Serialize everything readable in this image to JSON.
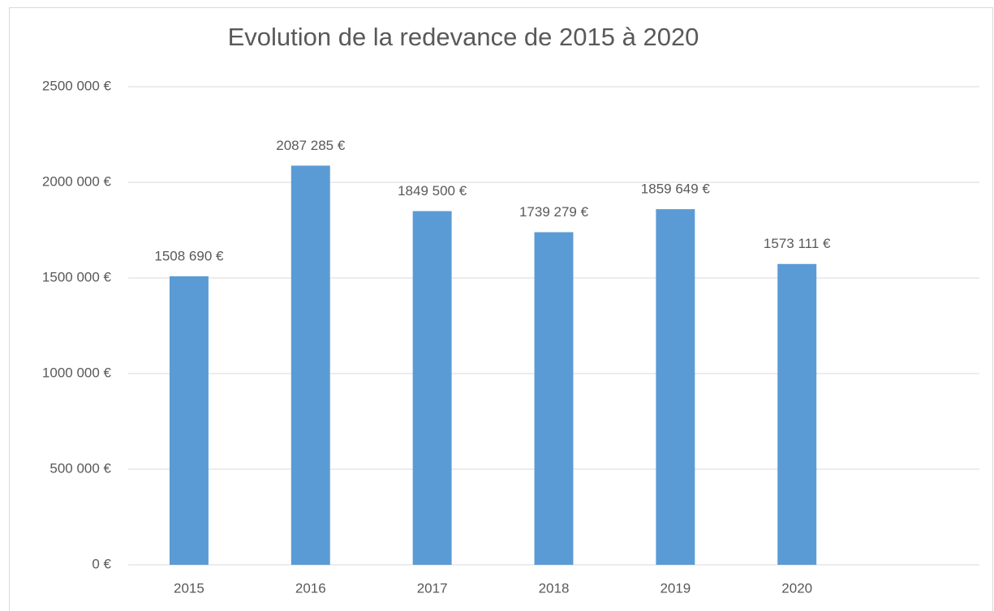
{
  "chart_data": {
    "type": "bar",
    "title": "Evolution de la redevance de 2015 à 2020",
    "categories": [
      "2015",
      "2016",
      "2017",
      "2018",
      "2019",
      "2020",
      null
    ],
    "values": [
      1508690,
      2087285,
      1849500,
      1739279,
      1859649,
      1573111,
      null
    ],
    "value_labels": [
      "1508 690 €",
      "2087 285 €",
      "1849 500 €",
      "1739 279 €",
      "1859 649 €",
      "1573 111 €",
      null
    ],
    "color": "#5b9bd5",
    "ylim": [
      0,
      2500000
    ],
    "yticks": [
      {
        "value": 0,
        "label": "0 €"
      },
      {
        "value": 500000,
        "label": "500 000 €"
      },
      {
        "value": 1000000,
        "label": "1000 000 €"
      },
      {
        "value": 1500000,
        "label": "1500 000 €"
      },
      {
        "value": 2000000,
        "label": "2000 000 €"
      },
      {
        "value": 2500000,
        "label": "2500 000 €"
      }
    ],
    "grid": true
  }
}
